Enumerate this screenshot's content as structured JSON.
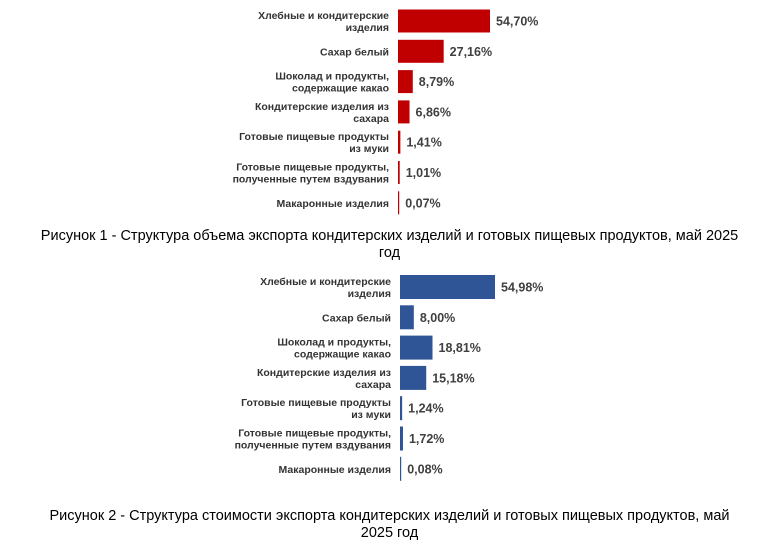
{
  "chart_data": [
    {
      "type": "bar",
      "orientation": "horizontal",
      "categories": [
        [
          "Хлебные и кондитерские",
          "изделия"
        ],
        [
          "Сахар белый"
        ],
        [
          "Шоколад и продукты,",
          "содержащие какао"
        ],
        [
          "Кондитерские изделия из",
          "сахара"
        ],
        [
          "Готовые пищевые продукты",
          "из муки"
        ],
        [
          "Готовые пищевые продукты,",
          "полученные путем вздувания"
        ],
        [
          "Макаронные изделия"
        ]
      ],
      "values": [
        54.7,
        27.16,
        8.79,
        6.86,
        1.41,
        1.01,
        0.07
      ],
      "value_labels": [
        "54,70%",
        "27,16%",
        "8,79%",
        "6,86%",
        "1,41%",
        "1,01%",
        "0,07%"
      ],
      "color": "#c00000",
      "grid": false,
      "legend": "none",
      "caption": [
        "Рисунок 1 - Структура объема экспорта кондитерских изделий и готовых пищевых продуктов, май 2025",
        "год"
      ]
    },
    {
      "type": "bar",
      "orientation": "horizontal",
      "categories": [
        [
          "Хлебные и кондитерские",
          "изделия"
        ],
        [
          "Сахар белый"
        ],
        [
          "Шоколад и продукты,",
          "содержащие какао"
        ],
        [
          "Кондитерские изделия из",
          "сахара"
        ],
        [
          "Готовые пищевые продукты",
          "из муки"
        ],
        [
          "Готовые пищевые продукты,",
          "полученные путем вздувания"
        ],
        [
          "Макаронные изделия"
        ]
      ],
      "values": [
        54.98,
        8.0,
        18.81,
        15.18,
        1.24,
        1.72,
        0.08
      ],
      "value_labels": [
        "54,98%",
        "8,00%",
        "18,81%",
        "15,18%",
        "1,24%",
        "1,72%",
        "0,08%"
      ],
      "color": "#2f5597",
      "grid": false,
      "legend": "none",
      "caption": [
        "Рисунок 2 - Структура стоимости экспорта кондитерских изделий и готовых пищевых продуктов, май",
        "2025 год"
      ]
    }
  ]
}
